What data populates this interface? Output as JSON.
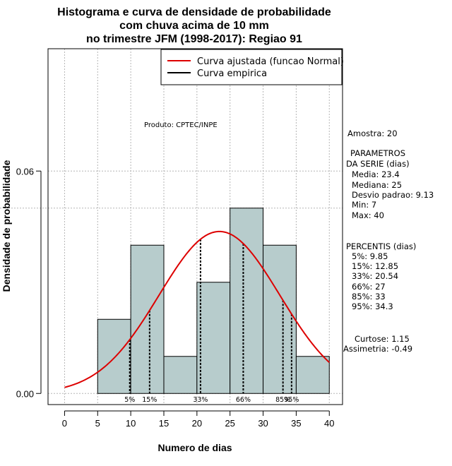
{
  "chart_data": {
    "type": "histogram",
    "title_lines": [
      "Histograma e curva de densidade de probabilidade",
      "com chuva acima de 10 mm",
      "no trimestre JFM (1998-2017): Regiao 91"
    ],
    "xlabel": "Numero de dias",
    "ylabel": "Densidade de probabilidade",
    "xlim": [
      -2.5,
      42
    ],
    "ylim": [
      -0.003,
      0.093
    ],
    "x_ticks": [
      "0",
      "5",
      "10",
      "15",
      "20",
      "25",
      "30",
      "35",
      "40"
    ],
    "y_ticks": [
      "0.00",
      "0.06"
    ],
    "bins": [
      {
        "from": 5,
        "to": 10,
        "density": 0.02
      },
      {
        "from": 10,
        "to": 15,
        "density": 0.04
      },
      {
        "from": 15,
        "to": 20,
        "density": 0.01
      },
      {
        "from": 20,
        "to": 25,
        "density": 0.03
      },
      {
        "from": 25,
        "to": 30,
        "density": 0.05
      },
      {
        "from": 30,
        "to": 35,
        "density": 0.04
      },
      {
        "from": 35,
        "to": 40,
        "density": 0.01
      }
    ],
    "normal_fit": {
      "mean": 23.4,
      "sd": 9.13,
      "x_from": 0,
      "x_to": 40
    },
    "percentile_lines": [
      {
        "label": "5%",
        "x": 9.85
      },
      {
        "label": "15%",
        "x": 12.85
      },
      {
        "label": "33%",
        "x": 20.54
      },
      {
        "label": "66%",
        "x": 27
      },
      {
        "label": "85%",
        "x": 33
      },
      {
        "label": "95%",
        "x": 34.3
      }
    ],
    "hline_y": 0.05,
    "legend": [
      {
        "label": "Curva ajustada (funcao Normal)",
        "color": "#dd0000"
      },
      {
        "label": "Curva empirica",
        "color": "#000000"
      }
    ],
    "product_label": "Produto: CPTEC/INPE"
  },
  "colors": {
    "bar_fill": "#b7cccc",
    "fit_curve": "#dd0000",
    "grid": "#b5b5b5"
  },
  "stats": {
    "sample": "Amostra: 20",
    "params_title_1": "PARAMETROS",
    "params_title_2": "DA SERIE (dias)",
    "params": [
      "Media: 23.4",
      "Mediana: 25",
      "Desvio padrao: 9.13",
      "Min: 7",
      "Max: 40"
    ],
    "percentis_title": "PERCENTIS (dias)",
    "percentis": [
      "5%: 9.85",
      "15%: 12.85",
      "33%: 20.54",
      "66%: 27",
      "85%: 33",
      "95%: 34.3"
    ],
    "curtose": "Curtose: 1.15",
    "assimetria": "Assimetria: -0.49"
  }
}
